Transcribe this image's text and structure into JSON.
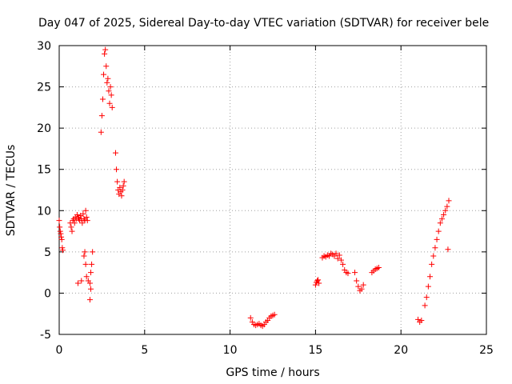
{
  "chart_data": {
    "type": "scatter",
    "title": "Day 047 of 2025, Sidereal Day-to-day VTEC variation (SDTVAR) for receiver bele",
    "xlabel": "GPS time / hours",
    "ylabel": "SDTVAR / TECUs",
    "xlim": [
      0,
      25
    ],
    "ylim": [
      -5,
      30
    ],
    "xticks": [
      "0",
      "5",
      "10",
      "15",
      "20",
      "25"
    ],
    "yticks": [
      "-5",
      "0",
      "5",
      "10",
      "15",
      "20",
      "25",
      "30"
    ],
    "grid": true,
    "marker": "+",
    "color": "#ff0000",
    "series": [
      {
        "name": "SDTVAR",
        "x": [
          0.0,
          0.03,
          0.06,
          0.09,
          0.12,
          0.15,
          0.18,
          0.21,
          0.65,
          0.7,
          0.75,
          0.8,
          0.85,
          0.9,
          0.95,
          1.0,
          1.05,
          1.1,
          1.15,
          1.2,
          1.25,
          1.3,
          1.35,
          1.4,
          1.45,
          1.5,
          1.55,
          1.6,
          1.65,
          1.1,
          1.3,
          1.45,
          1.5,
          1.55,
          1.6,
          1.7,
          1.8,
          1.85,
          1.9,
          1.95,
          1.8,
          1.85,
          2.45,
          2.5,
          2.55,
          2.6,
          2.65,
          2.7,
          2.75,
          2.8,
          2.85,
          2.9,
          2.95,
          3.0,
          3.05,
          3.1,
          3.3,
          3.35,
          3.4,
          3.45,
          3.5,
          3.55,
          3.6,
          3.65,
          3.7,
          3.75,
          3.8,
          11.2,
          11.3,
          11.4,
          11.5,
          11.6,
          11.7,
          11.8,
          11.9,
          12.0,
          12.1,
          12.2,
          12.3,
          12.4,
          12.5,
          12.6,
          15.0,
          15.05,
          15.1,
          15.15,
          15.2,
          15.4,
          15.5,
          15.6,
          15.7,
          15.8,
          15.9,
          16.0,
          16.1,
          16.2,
          16.3,
          16.4,
          16.5,
          16.6,
          16.7,
          16.8,
          16.9,
          17.3,
          17.4,
          17.5,
          17.6,
          17.7,
          17.8,
          18.3,
          18.4,
          18.5,
          18.6,
          18.7,
          21.0,
          21.1,
          21.2,
          21.4,
          21.5,
          21.6,
          21.7,
          21.8,
          21.9,
          22.0,
          22.1,
          22.2,
          22.3,
          22.4,
          22.5,
          22.6,
          22.7,
          22.8,
          22.75
        ],
        "y": [
          8.8,
          8.0,
          7.5,
          7.2,
          6.8,
          6.5,
          5.5,
          5.2,
          8.5,
          8.0,
          7.5,
          8.8,
          9.0,
          8.5,
          9.2,
          9.0,
          9.5,
          9.2,
          9.0,
          8.8,
          9.4,
          9.0,
          8.5,
          9.6,
          9.0,
          8.8,
          10.0,
          9.2,
          8.8,
          1.2,
          1.5,
          4.5,
          5.0,
          3.5,
          2.0,
          1.5,
          1.2,
          2.5,
          3.5,
          5.0,
          -0.8,
          0.5,
          19.5,
          21.5,
          23.5,
          26.5,
          29.0,
          29.5,
          27.5,
          25.5,
          26.0,
          24.5,
          23.0,
          25.0,
          24.0,
          22.5,
          17.0,
          15.0,
          13.5,
          12.5,
          12.0,
          12.8,
          12.3,
          11.8,
          12.5,
          13.0,
          13.5,
          -3.0,
          -3.5,
          -3.8,
          -3.9,
          -3.8,
          -3.7,
          -3.9,
          -4.0,
          -3.8,
          -3.5,
          -3.3,
          -3.0,
          -2.8,
          -2.7,
          -2.6,
          1.0,
          1.3,
          1.5,
          1.6,
          1.2,
          4.3,
          4.5,
          4.4,
          4.6,
          4.5,
          4.8,
          4.7,
          4.5,
          4.8,
          4.2,
          4.6,
          4.0,
          3.5,
          2.8,
          2.5,
          2.4,
          2.5,
          1.5,
          0.8,
          0.3,
          0.5,
          1.0,
          2.5,
          2.7,
          2.9,
          3.0,
          3.1,
          -3.2,
          -3.5,
          -3.3,
          -1.5,
          -0.5,
          0.8,
          2.0,
          3.5,
          4.5,
          5.5,
          6.5,
          7.5,
          8.5,
          9.0,
          9.5,
          10.0,
          10.5,
          11.2,
          5.3
        ]
      }
    ]
  }
}
